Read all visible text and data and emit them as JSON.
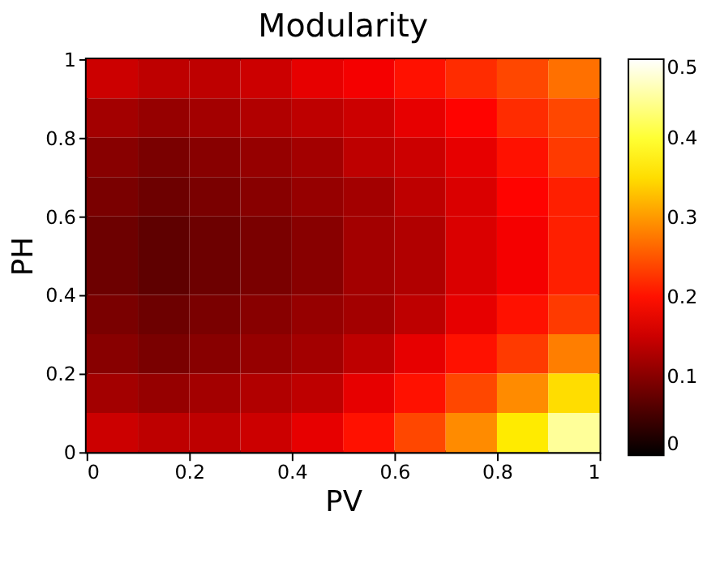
{
  "chart_data": {
    "type": "heatmap",
    "title": "Modularity",
    "xlabel": "PV",
    "ylabel": "PH",
    "x": [
      0.05,
      0.15,
      0.25,
      0.35,
      0.45,
      0.55,
      0.65,
      0.75,
      0.85,
      0.95
    ],
    "y": [
      0.95,
      0.85,
      0.75,
      0.65,
      0.55,
      0.45,
      0.35,
      0.25,
      0.15,
      0.05
    ],
    "cells": [
      [
        0.15,
        0.14,
        0.14,
        0.15,
        0.17,
        0.18,
        0.2,
        0.22,
        0.24,
        0.27
      ],
      [
        0.12,
        0.11,
        0.12,
        0.13,
        0.14,
        0.15,
        0.17,
        0.19,
        0.22,
        0.24
      ],
      [
        0.1,
        0.09,
        0.1,
        0.11,
        0.12,
        0.14,
        0.15,
        0.17,
        0.2,
        0.23
      ],
      [
        0.09,
        0.08,
        0.09,
        0.1,
        0.11,
        0.12,
        0.14,
        0.16,
        0.19,
        0.21
      ],
      [
        0.08,
        0.07,
        0.08,
        0.09,
        0.1,
        0.12,
        0.13,
        0.16,
        0.18,
        0.21
      ],
      [
        0.08,
        0.07,
        0.08,
        0.09,
        0.1,
        0.12,
        0.13,
        0.16,
        0.18,
        0.21
      ],
      [
        0.09,
        0.08,
        0.09,
        0.1,
        0.11,
        0.12,
        0.14,
        0.17,
        0.2,
        0.23
      ],
      [
        0.1,
        0.09,
        0.1,
        0.11,
        0.12,
        0.14,
        0.17,
        0.2,
        0.23,
        0.28
      ],
      [
        0.12,
        0.11,
        0.12,
        0.13,
        0.14,
        0.17,
        0.2,
        0.24,
        0.29,
        0.35
      ],
      [
        0.15,
        0.14,
        0.14,
        0.15,
        0.17,
        0.2,
        0.24,
        0.29,
        0.36,
        0.45
      ]
    ],
    "xlim": [
      0,
      1
    ],
    "ylim": [
      0,
      1
    ],
    "xticks": [
      0,
      0.2,
      0.4,
      0.6,
      0.8,
      1
    ],
    "yticks": [
      0,
      0.2,
      0.4,
      0.6,
      0.8,
      1
    ],
    "clim": [
      0,
      0.5
    ],
    "cticks": [
      0,
      0.1,
      0.2,
      0.3,
      0.4,
      0.5
    ],
    "grid": false
  }
}
